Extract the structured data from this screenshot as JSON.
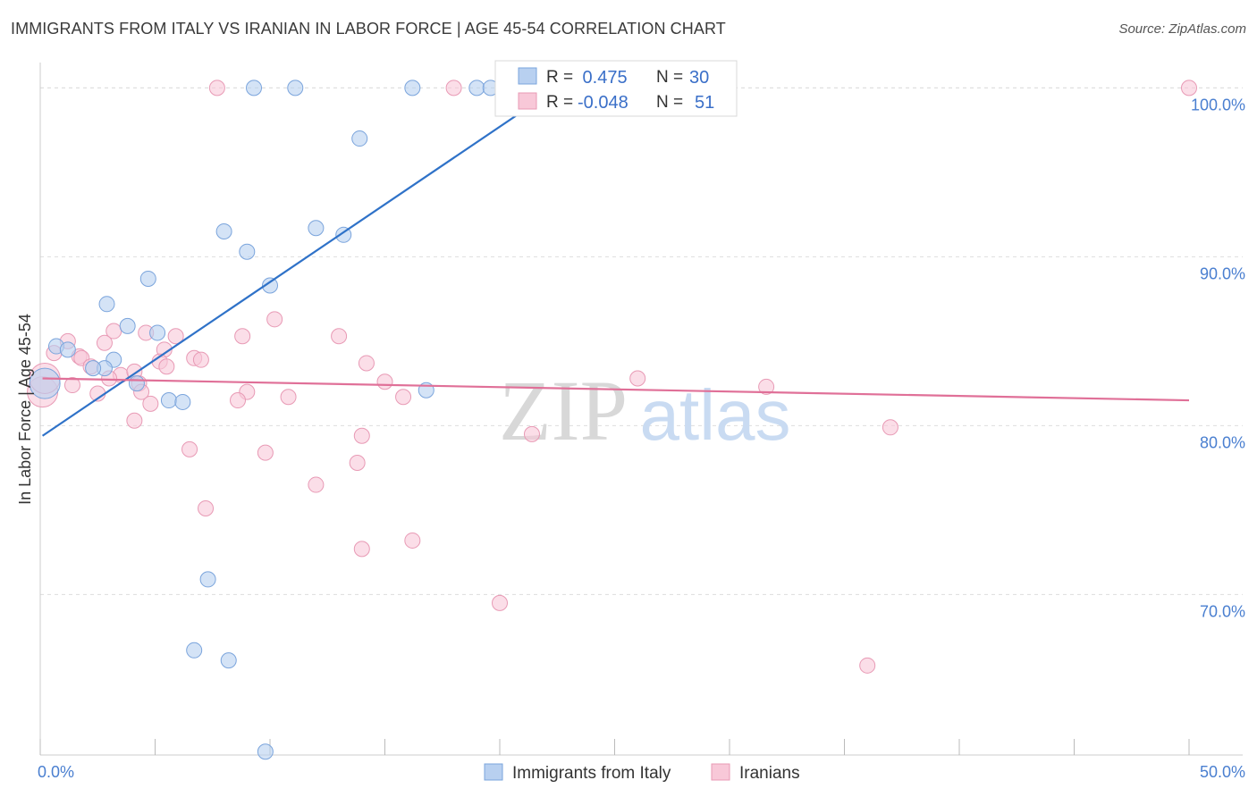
{
  "title": "IMMIGRANTS FROM ITALY VS IRANIAN IN LABOR FORCE | AGE 45-54 CORRELATION CHART",
  "source": "Source: ZipAtlas.com",
  "watermark": {
    "zip": "ZIP",
    "atlas": "atlas"
  },
  "colors": {
    "blue_fill": "#b8d0f0",
    "blue_stroke": "#7aa4dc",
    "blue_line": "#2f72c8",
    "pink_fill": "#f8c8d8",
    "pink_stroke": "#e89ab5",
    "pink_line": "#e07098",
    "grid": "#dddddd",
    "axis_label": "#4a7fd0"
  },
  "chart_data": {
    "type": "scatter",
    "title": "IMMIGRANTS FROM ITALY VS IRANIAN IN LABOR FORCE | AGE 45-54 CORRELATION CHART",
    "ylabel": "In Labor Force | Age 45-54",
    "xlabel": "",
    "xlim": [
      0,
      50
    ],
    "ylim": [
      60.5,
      101.5
    ],
    "x_ticks": [
      0,
      50
    ],
    "x_tick_labels": [
      "0.0%",
      "50.0%"
    ],
    "y_ticks": [
      70,
      80,
      90,
      100
    ],
    "y_tick_labels": [
      "70.0%",
      "80.0%",
      "90.0%",
      "100.0%"
    ],
    "grid": true,
    "legend_position": "top-center",
    "legend": [
      {
        "r_label": "R =",
        "r_value": " 0.475",
        "n_label": "N =",
        "n_value": "30"
      },
      {
        "r_label": "R =",
        "r_value": "-0.048",
        "n_label": "N =",
        "n_value": "51"
      }
    ],
    "bottom_legend": [
      "Immigrants from Italy",
      "Iranians"
    ],
    "series": [
      {
        "name": "Immigrants from Italy",
        "color": "#b8d0f0",
        "trend": {
          "x": [
            0.1,
            22.5
          ],
          "y": [
            79.4,
            100.0
          ]
        },
        "points": [
          [
            9.3,
            100.0
          ],
          [
            11.1,
            100.0
          ],
          [
            16.2,
            100.0
          ],
          [
            19.0,
            100.0
          ],
          [
            19.6,
            100.0
          ],
          [
            22.2,
            100.0
          ],
          [
            13.9,
            97.0
          ],
          [
            8.0,
            91.5
          ],
          [
            12.0,
            91.7
          ],
          [
            13.2,
            91.3
          ],
          [
            9.0,
            90.3
          ],
          [
            10.0,
            88.3
          ],
          [
            4.7,
            88.7
          ],
          [
            2.9,
            87.2
          ],
          [
            3.8,
            85.9
          ],
          [
            5.1,
            85.5
          ],
          [
            0.7,
            84.7
          ],
          [
            1.2,
            84.5
          ],
          [
            3.2,
            83.9
          ],
          [
            2.8,
            83.4
          ],
          [
            2.3,
            83.4
          ],
          [
            4.2,
            82.5
          ],
          [
            5.6,
            81.5
          ],
          [
            6.2,
            81.4
          ],
          [
            16.8,
            82.1
          ],
          [
            0.2,
            82.5
          ],
          [
            7.3,
            70.9
          ],
          [
            6.7,
            66.7
          ],
          [
            8.2,
            66.1
          ],
          [
            9.8,
            60.7
          ]
        ]
      },
      {
        "name": "Iranians",
        "color": "#f8c8d8",
        "trend": {
          "x": [
            0.1,
            50.0
          ],
          "y": [
            82.8,
            81.5
          ]
        },
        "points": [
          [
            7.7,
            100.0
          ],
          [
            18.0,
            100.0
          ],
          [
            50.0,
            100.0
          ],
          [
            3.2,
            85.6
          ],
          [
            4.6,
            85.5
          ],
          [
            5.9,
            85.3
          ],
          [
            8.8,
            85.3
          ],
          [
            13.0,
            85.3
          ],
          [
            10.2,
            86.3
          ],
          [
            1.2,
            85.0
          ],
          [
            2.8,
            84.9
          ],
          [
            5.4,
            84.5
          ],
          [
            0.6,
            84.3
          ],
          [
            1.7,
            84.1
          ],
          [
            1.8,
            84.0
          ],
          [
            5.2,
            83.8
          ],
          [
            6.7,
            84.0
          ],
          [
            7.0,
            83.9
          ],
          [
            14.2,
            83.7
          ],
          [
            5.5,
            83.5
          ],
          [
            2.2,
            83.5
          ],
          [
            3.5,
            83.0
          ],
          [
            4.1,
            83.2
          ],
          [
            3.0,
            82.8
          ],
          [
            4.3,
            82.5
          ],
          [
            1.4,
            82.4
          ],
          [
            15.0,
            82.6
          ],
          [
            26.0,
            82.8
          ],
          [
            31.6,
            82.3
          ],
          [
            4.4,
            82.0
          ],
          [
            9.0,
            82.0
          ],
          [
            2.5,
            81.9
          ],
          [
            8.6,
            81.5
          ],
          [
            10.8,
            81.7
          ],
          [
            15.8,
            81.7
          ],
          [
            4.8,
            81.3
          ],
          [
            0.1,
            82.0
          ],
          [
            4.1,
            80.3
          ],
          [
            21.4,
            79.5
          ],
          [
            37.0,
            79.9
          ],
          [
            14.0,
            79.4
          ],
          [
            6.5,
            78.6
          ],
          [
            9.8,
            78.4
          ],
          [
            13.8,
            77.8
          ],
          [
            12.0,
            76.5
          ],
          [
            7.2,
            75.1
          ],
          [
            16.2,
            73.2
          ],
          [
            14.0,
            72.7
          ],
          [
            20.0,
            69.5
          ],
          [
            36.0,
            65.8
          ],
          [
            0.2,
            82.8
          ]
        ]
      }
    ]
  }
}
